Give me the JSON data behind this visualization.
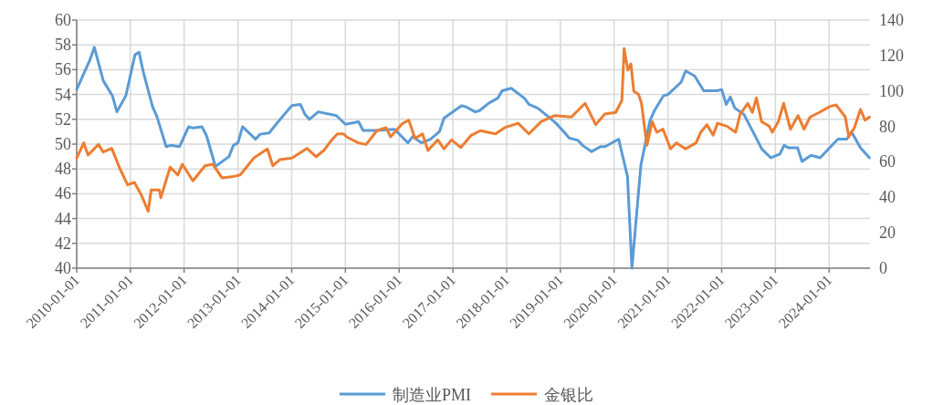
{
  "chart_data": {
    "type": "line",
    "legend": "bottom",
    "grid": true,
    "xlim": [
      "2010-01-01",
      "2024-10-05"
    ],
    "xticks": [
      "2010-01-01",
      "2011-01-01",
      "2012-01-01",
      "2013-01-01",
      "2014-01-01",
      "2015-01-01",
      "2016-01-01",
      "2017-01-01",
      "2018-01-01",
      "2019-01-01",
      "2020-01-01",
      "2021-01-01",
      "2022-01-01",
      "2023-01-01",
      "2024-01-01"
    ],
    "ylim": [
      40,
      60
    ],
    "yticks": [
      40,
      42,
      44,
      46,
      48,
      50,
      52,
      54,
      56,
      58,
      60
    ],
    "y2lim": [
      0,
      140
    ],
    "y2ticks": [
      0,
      20,
      40,
      60,
      80,
      100,
      120,
      140
    ],
    "series": [
      {
        "name": "制造业PMI",
        "color": "#5b9bd5",
        "x": [
          "2010-01",
          "2010-04",
          "2010-05",
          "2010-07",
          "2010-09",
          "2010-10",
          "2010-12",
          "2011-02",
          "2011-03",
          "2011-04",
          "2011-06",
          "2011-07",
          "2011-09",
          "2011-10",
          "2011-12",
          "2012-02",
          "2012-03",
          "2012-05",
          "2012-06",
          "2012-08",
          "2012-11",
          "2012-12",
          "2013-01",
          "2013-02",
          "2013-05",
          "2013-06",
          "2013-08",
          "2013-10",
          "2014-01",
          "2014-03",
          "2014-04",
          "2014-05",
          "2014-07",
          "2014-11",
          "2015-01",
          "2015-04",
          "2015-05",
          "2015-08",
          "2015-12",
          "2016-03",
          "2016-04",
          "2016-06",
          "2016-08",
          "2016-10",
          "2016-11",
          "2017-03",
          "2017-04",
          "2017-06",
          "2017-07",
          "2017-09",
          "2017-11",
          "2017-12",
          "2018-02",
          "2018-05",
          "2018-06",
          "2018-08",
          "2018-10",
          "2018-12",
          "2019-02",
          "2019-03",
          "2019-05",
          "2019-06",
          "2019-08",
          "2019-10",
          "2019-11",
          "2020-02",
          "2020-04",
          "2020-05",
          "2020-07",
          "2020-09",
          "2020-10",
          "2020-12",
          "2021-01",
          "2021-04",
          "2021-05",
          "2021-07",
          "2021-09",
          "2021-12",
          "2022-01",
          "2022-02",
          "2022-03",
          "2022-04",
          "2022-06",
          "2022-09",
          "2022-10",
          "2022-12",
          "2023-02",
          "2023-03",
          "2023-04",
          "2023-06",
          "2023-07",
          "2023-09",
          "2023-11",
          "2024-03",
          "2024-05",
          "2024-06",
          "2024-08",
          "2024-10"
        ],
        "values": [
          54.4,
          56.8,
          57.8,
          55.1,
          53.9,
          52.6,
          53.9,
          57.2,
          57.4,
          55.7,
          53.0,
          52.2,
          49.8,
          49.9,
          49.8,
          51.4,
          51.3,
          51.4,
          50.7,
          48.2,
          49.0,
          49.9,
          50.1,
          51.4,
          50.4,
          50.8,
          50.9,
          51.8,
          53.1,
          53.2,
          52.4,
          52.0,
          52.6,
          52.3,
          51.6,
          51.8,
          51.1,
          51.1,
          51.2,
          50.1,
          50.6,
          50.1,
          50.4,
          51.0,
          52.1,
          53.1,
          53.0,
          52.6,
          52.7,
          53.3,
          53.7,
          54.3,
          54.5,
          53.7,
          53.2,
          52.9,
          52.3,
          51.7,
          50.9,
          50.5,
          50.3,
          49.9,
          49.4,
          49.8,
          49.8,
          50.4,
          47.4,
          40.0,
          48.3,
          51.9,
          52.7,
          53.9,
          54.0,
          55.0,
          55.9,
          55.5,
          54.3,
          54.3,
          54.4,
          53.2,
          53.8,
          52.9,
          52.4,
          50.3,
          49.6,
          48.9,
          49.2,
          49.9,
          49.7,
          49.7,
          48.6,
          49.1,
          48.9,
          50.4,
          50.4,
          51.0,
          49.7,
          48.9
        ]
      },
      {
        "name": "金银比",
        "color": "#ed7d31",
        "axis": "y2",
        "x": [
          "2010-01-01",
          "2010-02-18",
          "2010-03-19",
          "2010-05-29",
          "2010-06-30",
          "2010-08-27",
          "2010-10-22",
          "2010-12-13",
          "2011-01-28",
          "2011-03-15",
          "2011-05-02",
          "2011-05-22",
          "2011-07-17",
          "2011-07-27",
          "2011-09-28",
          "2011-11-19",
          "2011-12-20",
          "2012-03-01",
          "2012-05-22",
          "2012-07-13",
          "2012-09-14",
          "2012-12-06",
          "2013-01-16",
          "2013-04-18",
          "2013-07-20",
          "2013-08-26",
          "2013-10-12",
          "2014-01-03",
          "2014-04-15",
          "2014-06-16",
          "2014-08-07",
          "2014-09-27",
          "2014-11-08",
          "2014-12-19",
          "2015-01-09",
          "2015-03-30",
          "2015-05-22",
          "2015-08-03",
          "2015-10-04",
          "2015-11-04",
          "2016-01-26",
          "2016-03-07",
          "2016-04-18",
          "2016-06-08",
          "2016-07-15",
          "2016-09-20",
          "2016-11-01",
          "2016-12-22",
          "2017-02-23",
          "2017-05-05",
          "2017-07-06",
          "2017-10-17",
          "2017-12-18",
          "2018-03-20",
          "2018-06-01",
          "2018-08-23",
          "2018-11-24",
          "2019-03-17",
          "2019-06-18",
          "2019-07-19",
          "2019-08-29",
          "2019-10-30",
          "2020-01-12",
          "2020-02-23",
          "2020-03-09",
          "2020-04-03",
          "2020-04-24",
          "2020-05-14",
          "2020-06-15",
          "2020-07-05",
          "2020-07-26",
          "2020-08-11",
          "2020-09-16",
          "2020-10-17",
          "2020-11-28",
          "2021-01-19",
          "2021-02-28",
          "2021-04-30",
          "2021-07-11",
          "2021-08-12",
          "2021-09-23",
          "2021-11-04",
          "2021-12-04",
          "2022-02-05",
          "2022-04-06",
          "2022-05-07",
          "2022-06-28",
          "2022-07-29",
          "2022-08-25",
          "2022-09-29",
          "2022-11-20",
          "2022-12-11",
          "2023-01-21",
          "2023-02-26",
          "2023-04-13",
          "2023-06-04",
          "2023-07-15",
          "2023-08-25",
          "2023-10-26",
          "2024-01-08",
          "2024-02-18",
          "2024-04-20",
          "2024-05-14",
          "2024-06-21",
          "2024-08-01",
          "2024-09-01",
          "2024-10-02"
        ],
        "values": [
          62.1,
          70.7,
          63.8,
          69.8,
          65.5,
          67.6,
          56.1,
          47.0,
          48.4,
          41.5,
          32.1,
          44.1,
          44.1,
          39.8,
          57.0,
          52.6,
          58.7,
          49.3,
          57.8,
          58.7,
          51.0,
          51.8,
          52.6,
          62.1,
          67.3,
          57.8,
          61.2,
          62.1,
          67.6,
          62.9,
          66.4,
          72.0,
          75.8,
          75.8,
          74.1,
          70.7,
          69.8,
          77.6,
          79.3,
          74.1,
          81.8,
          83.5,
          73.2,
          75.8,
          66.4,
          72.4,
          67.3,
          72.4,
          68.1,
          75.0,
          77.6,
          75.8,
          79.3,
          81.8,
          75.8,
          82.7,
          86.1,
          85.3,
          93.0,
          87.9,
          81.0,
          87.0,
          87.9,
          94.7,
          123.9,
          111.8,
          115.3,
          99.8,
          98.1,
          93.0,
          79.3,
          69.3,
          82.7,
          76.7,
          78.4,
          67.3,
          70.7,
          67.3,
          70.7,
          76.7,
          81.0,
          75.0,
          81.8,
          80.1,
          76.7,
          87.0,
          93.0,
          87.9,
          96.1,
          82.7,
          80.1,
          76.7,
          82.7,
          93.0,
          78.4,
          86.1,
          78.4,
          85.3,
          87.9,
          91.3,
          92.1,
          85.3,
          74.1,
          79.3,
          89.6,
          83.5,
          85.3
        ]
      }
    ]
  }
}
